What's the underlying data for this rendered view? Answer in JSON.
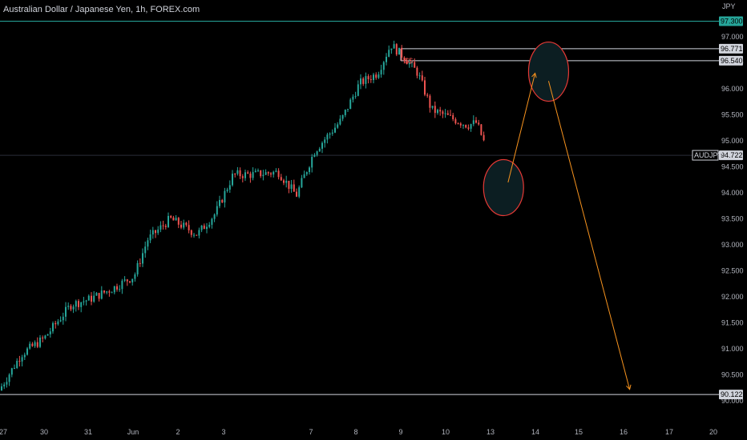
{
  "header": {
    "title": "Australian Dollar / Japanese Yen, 1h, FOREX.com",
    "currency": "JPY"
  },
  "colors": {
    "background": "#000000",
    "up": "#26a69a",
    "down": "#ef5350",
    "hline": "#d1d4dc",
    "green_line": "#26a69a",
    "arrow": "#f7931e",
    "circle": "#e53935",
    "circle_fill": "#0c1e22"
  },
  "chart_data": {
    "type": "candlestick",
    "symbol": "AUDJPY",
    "last_price": "94.722",
    "ylim": [
      90.0,
      97.45
    ],
    "y_ticks": [
      "97.000",
      "96.500",
      "96.000",
      "95.500",
      "95.000",
      "94.500",
      "94.000",
      "93.500",
      "93.000",
      "92.500",
      "92.000",
      "91.500",
      "91.000",
      "90.500",
      "90.000"
    ],
    "x_ticks": [
      "27",
      "30",
      "31",
      "Jun",
      "2",
      "3",
      "7",
      "8",
      "9",
      "10",
      "13",
      "14",
      "15",
      "16",
      "17",
      "20"
    ],
    "y_labels": [
      {
        "value": 97.3,
        "text": "97.300",
        "style": "green"
      },
      {
        "value": 96.771,
        "text": "96.771",
        "style": "white"
      },
      {
        "value": 96.54,
        "text": "96.540",
        "style": "white"
      },
      {
        "value": 94.722,
        "text": "94.722",
        "style": "white"
      },
      {
        "value": 90.122,
        "text": "90.122",
        "style": "white"
      }
    ],
    "horizontal_lines": [
      {
        "price": 97.3,
        "kind": "green"
      },
      {
        "price": 96.771,
        "kind": "white",
        "from_day": 8.95
      },
      {
        "price": 96.54,
        "kind": "white",
        "from_day": 8.95
      },
      {
        "price": 90.122,
        "kind": "white",
        "from_day": 0
      }
    ],
    "annotation_text": "$$",
    "path": [
      [
        0,
        90.2
      ],
      [
        0.5,
        90.9
      ],
      [
        1,
        91.2
      ],
      [
        1.6,
        91.85
      ],
      [
        2,
        91.95
      ],
      [
        2.5,
        92.15
      ],
      [
        3,
        92.4
      ],
      [
        3.3,
        93.1
      ],
      [
        3.8,
        93.5
      ],
      [
        4.4,
        93.2
      ],
      [
        4.8,
        93.6
      ],
      [
        5.2,
        94.35
      ],
      [
        5.6,
        94.35
      ],
      [
        6.2,
        94.4
      ],
      [
        6.6,
        93.95
      ],
      [
        7.0,
        94.8
      ],
      [
        7.6,
        95.4
      ],
      [
        8.0,
        96.1
      ],
      [
        8.4,
        96.3
      ],
      [
        8.7,
        96.85
      ],
      [
        9.0,
        96.6
      ],
      [
        9.3,
        96.3
      ],
      [
        9.6,
        95.6
      ],
      [
        10.0,
        95.45
      ],
      [
        10.4,
        95.3
      ],
      [
        10.6,
        95.35
      ],
      [
        10.8,
        94.9
      ],
      [
        11.0,
        94.7
      ],
      [
        11.15,
        94.72
      ]
    ],
    "ellipses": [
      {
        "center_day": 11.2,
        "center_price": 94.1,
        "rx": 25,
        "ry": 35
      },
      {
        "center_day": 12.2,
        "center_price": 96.33,
        "rx": 25,
        "ry": 37
      }
    ],
    "arrows": [
      {
        "from_day": 11.3,
        "from_price": 94.2,
        "to_day": 11.9,
        "to_price": 96.3
      },
      {
        "from_day": 12.2,
        "from_price": 96.15,
        "to_day": 14.0,
        "to_price": 90.22
      }
    ]
  }
}
